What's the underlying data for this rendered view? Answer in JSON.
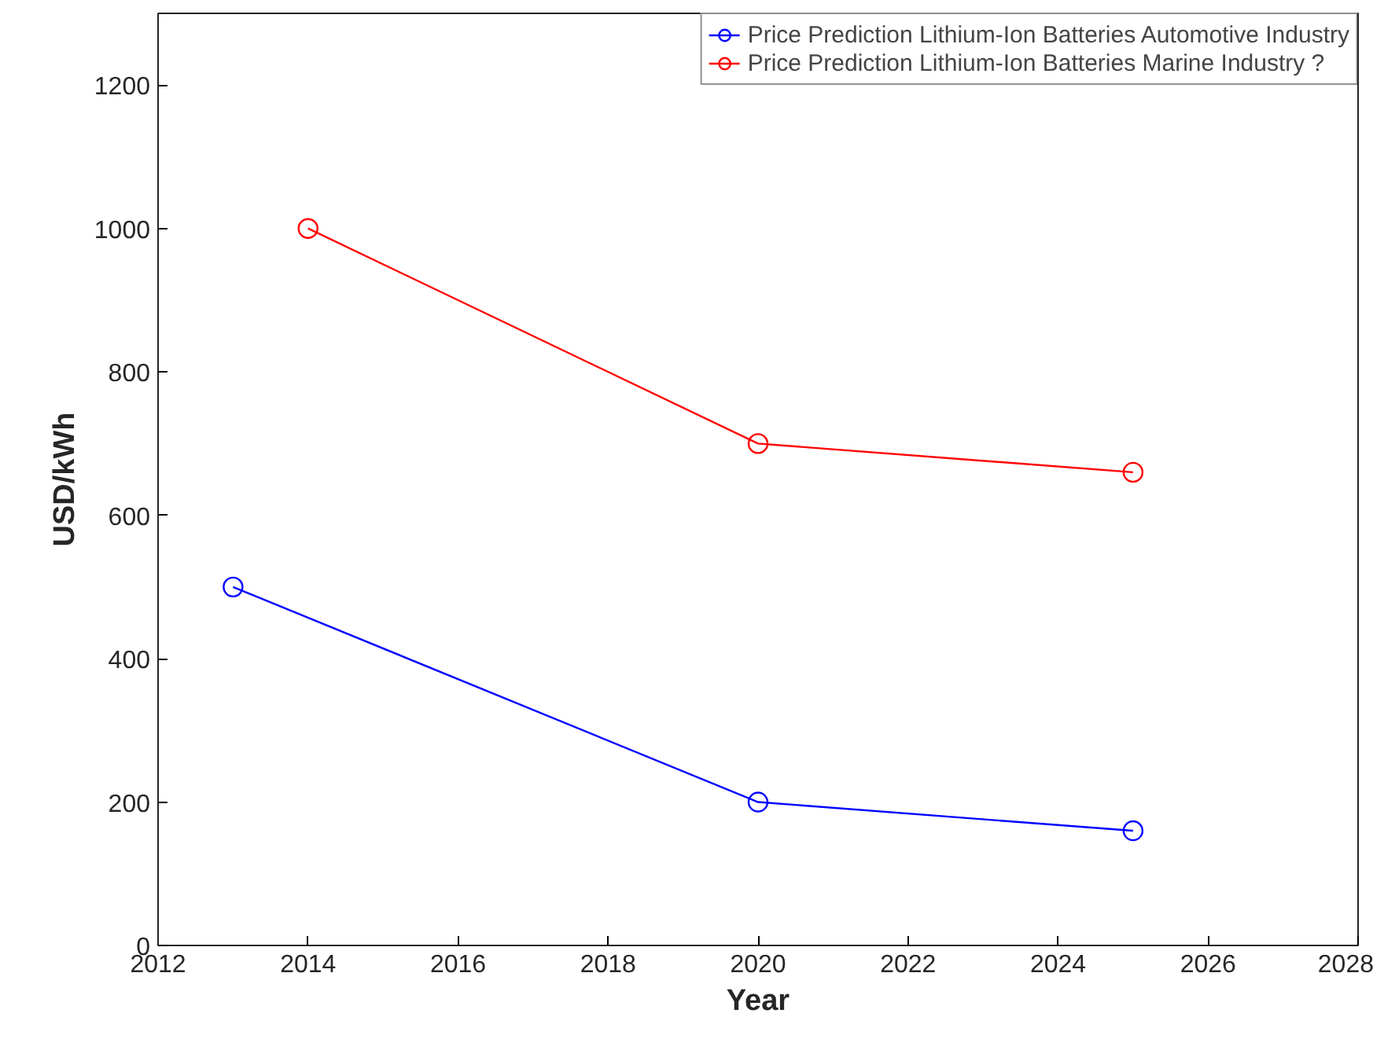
{
  "chart_data": {
    "type": "line",
    "xlabel": "Year",
    "ylabel": "USD/kWh",
    "xlim": [
      2012,
      2028
    ],
    "ylim": [
      0,
      1300
    ],
    "xticks": [
      2012,
      2014,
      2016,
      2018,
      2020,
      2022,
      2024,
      2026,
      2028
    ],
    "yticks": [
      0,
      200,
      400,
      600,
      800,
      1000,
      1200
    ],
    "grid": false,
    "legend": "top right",
    "marker": "circle",
    "line_style": "solid",
    "series": [
      {
        "name": "Price Prediction Lithium-Ion Batteries Automotive Industry",
        "color": "#0000ff",
        "x": [
          2013,
          2020,
          2025
        ],
        "values": [
          500,
          200,
          160
        ]
      },
      {
        "name": "Price Prediction Lithium-Ion Batteries Marine Industry ?",
        "color": "#ff0000",
        "x": [
          2014,
          2020,
          2025
        ],
        "values": [
          1000,
          700,
          660
        ]
      }
    ]
  }
}
